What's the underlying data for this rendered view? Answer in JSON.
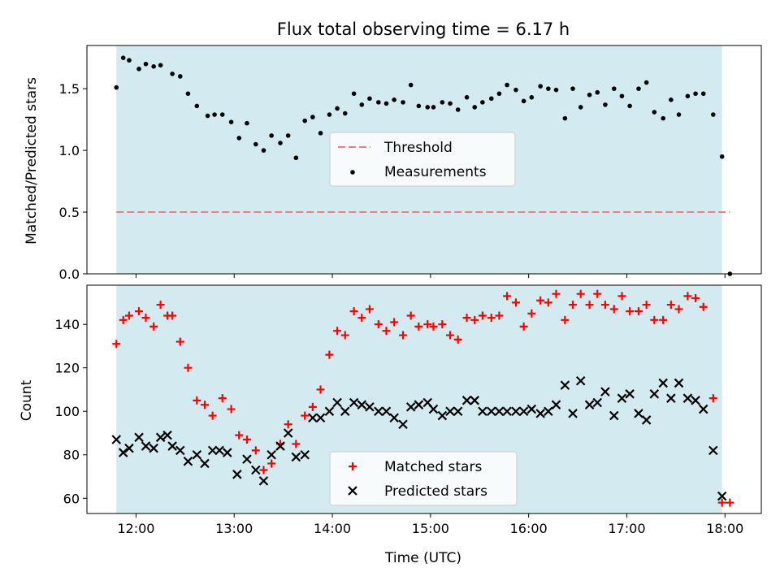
{
  "colors": {
    "shade": "#d4eaf1",
    "threshold": "#f08080",
    "measurement": "#000000",
    "matched": "#ff0000",
    "predicted": "#000000"
  },
  "chart_data": [
    {
      "type": "scatter",
      "title": "Flux total observing time = 6.17 h",
      "xlabel": "",
      "ylabel": "Matched/Predicted stars",
      "xlim": [
        11.5,
        18.37
      ],
      "ylim": [
        0.0,
        1.85
      ],
      "yticks": [
        0.0,
        0.5,
        1.0,
        1.5
      ],
      "ytick_labels": [
        "0.0",
        "0.5",
        "1.0",
        "1.5"
      ],
      "xtick_labels_shown": false,
      "grid": false,
      "legend_position": "center",
      "shaded_span": [
        11.8,
        17.97
      ],
      "threshold": {
        "name": "Threshold",
        "value": 0.5,
        "x_range": [
          11.8,
          18.05
        ]
      },
      "series": [
        {
          "name": "Measurements",
          "x": [
            11.8,
            11.87,
            11.93,
            12.03,
            12.1,
            12.18,
            12.25,
            12.37,
            12.45,
            12.53,
            12.62,
            12.73,
            12.8,
            12.88,
            12.97,
            13.05,
            13.13,
            13.22,
            13.3,
            13.38,
            13.47,
            13.55,
            13.63,
            13.72,
            13.8,
            13.88,
            13.97,
            14.05,
            14.13,
            14.22,
            14.3,
            14.38,
            14.47,
            14.55,
            14.63,
            14.72,
            14.8,
            14.88,
            14.97,
            15.03,
            15.12,
            15.2,
            15.28,
            15.37,
            15.45,
            15.53,
            15.62,
            15.7,
            15.78,
            15.87,
            15.95,
            16.03,
            16.12,
            16.2,
            16.28,
            16.37,
            16.45,
            16.53,
            16.62,
            16.7,
            16.78,
            16.87,
            16.95,
            17.03,
            17.12,
            17.2,
            17.28,
            17.37,
            17.45,
            17.53,
            17.62,
            17.7,
            17.78,
            17.88,
            17.97,
            18.05
          ],
          "y": [
            1.51,
            1.75,
            1.73,
            1.66,
            1.7,
            1.68,
            1.69,
            1.62,
            1.6,
            1.46,
            1.36,
            1.28,
            1.29,
            1.29,
            1.23,
            1.1,
            1.22,
            1.05,
            1.0,
            1.12,
            1.06,
            1.12,
            0.94,
            1.24,
            1.27,
            1.14,
            1.29,
            1.34,
            1.3,
            1.46,
            1.37,
            1.42,
            1.39,
            1.38,
            1.41,
            1.39,
            1.53,
            1.36,
            1.35,
            1.35,
            1.39,
            1.38,
            1.33,
            1.43,
            1.35,
            1.39,
            1.42,
            1.46,
            1.53,
            1.49,
            1.4,
            1.43,
            1.52,
            1.5,
            1.49,
            1.26,
            1.5,
            1.35,
            1.45,
            1.47,
            1.37,
            1.5,
            1.44,
            1.36,
            1.5,
            1.55,
            1.31,
            1.26,
            1.41,
            1.29,
            1.44,
            1.46,
            1.46,
            1.29,
            0.95,
            0.0
          ]
        }
      ]
    },
    {
      "type": "scatter",
      "title": "",
      "xlabel": "Time (UTC)",
      "ylabel": "Count",
      "xlim": [
        11.5,
        18.37
      ],
      "ylim": [
        53,
        158
      ],
      "xticks": [
        12,
        13,
        14,
        15,
        16,
        17,
        18
      ],
      "xtick_labels": [
        "12:00",
        "13:00",
        "14:00",
        "15:00",
        "16:00",
        "17:00",
        "18:00"
      ],
      "yticks": [
        60,
        80,
        100,
        120,
        140
      ],
      "ytick_labels": [
        "60",
        "80",
        "100",
        "120",
        "140"
      ],
      "grid": false,
      "legend_position": "lower center",
      "shaded_span": [
        11.8,
        17.97
      ],
      "series": [
        {
          "name": "Matched stars",
          "marker": "plus",
          "x": [
            11.8,
            11.87,
            11.93,
            12.03,
            12.1,
            12.18,
            12.25,
            12.32,
            12.37,
            12.45,
            12.53,
            12.62,
            12.7,
            12.78,
            12.88,
            12.97,
            13.05,
            13.13,
            13.22,
            13.3,
            13.38,
            13.47,
            13.55,
            13.63,
            13.72,
            13.8,
            13.88,
            13.97,
            14.05,
            14.13,
            14.22,
            14.3,
            14.38,
            14.47,
            14.55,
            14.63,
            14.72,
            14.8,
            14.88,
            14.97,
            15.03,
            15.12,
            15.2,
            15.28,
            15.37,
            15.45,
            15.53,
            15.62,
            15.7,
            15.78,
            15.87,
            15.95,
            16.03,
            16.12,
            16.2,
            16.28,
            16.37,
            16.45,
            16.53,
            16.62,
            16.7,
            16.78,
            16.87,
            16.95,
            17.03,
            17.12,
            17.2,
            17.28,
            17.37,
            17.45,
            17.53,
            17.62,
            17.7,
            17.78,
            17.88,
            17.97,
            18.05
          ],
          "y": [
            131,
            142,
            144,
            146,
            143,
            139,
            149,
            144,
            144,
            132,
            120,
            105,
            103,
            98,
            106,
            101,
            89,
            87,
            82,
            73,
            76,
            85,
            94,
            85,
            98,
            102,
            110,
            126,
            137,
            135,
            146,
            143,
            147,
            140,
            137,
            141,
            135,
            144,
            139,
            140,
            139,
            140,
            135,
            133,
            143,
            142,
            144,
            143,
            144,
            153,
            150,
            139,
            145,
            151,
            150,
            154,
            142,
            149,
            154,
            149,
            154,
            149,
            147,
            153,
            146,
            146,
            149,
            142,
            142,
            149,
            147,
            153,
            152,
            148,
            106,
            58,
            58
          ]
        },
        {
          "name": "Predicted stars",
          "marker": "x",
          "x": [
            11.8,
            11.87,
            11.93,
            12.03,
            12.1,
            12.18,
            12.25,
            12.32,
            12.37,
            12.45,
            12.53,
            12.62,
            12.7,
            12.78,
            12.85,
            12.93,
            13.03,
            13.13,
            13.22,
            13.3,
            13.38,
            13.47,
            13.55,
            13.63,
            13.72,
            13.8,
            13.88,
            13.97,
            14.05,
            14.13,
            14.22,
            14.3,
            14.38,
            14.47,
            14.55,
            14.63,
            14.72,
            14.8,
            14.88,
            14.97,
            15.03,
            15.12,
            15.2,
            15.28,
            15.37,
            15.45,
            15.53,
            15.62,
            15.7,
            15.78,
            15.87,
            15.95,
            16.03,
            16.12,
            16.2,
            16.28,
            16.37,
            16.45,
            16.53,
            16.62,
            16.7,
            16.78,
            16.87,
            16.95,
            17.03,
            17.12,
            17.2,
            17.28,
            17.37,
            17.45,
            17.53,
            17.62,
            17.7,
            17.78,
            17.88,
            17.97
          ],
          "y": [
            87,
            81,
            83,
            88,
            84,
            83,
            88,
            89,
            84,
            82,
            77,
            80,
            76,
            82,
            82,
            81,
            71,
            78,
            73,
            68,
            80,
            84,
            90,
            79,
            80,
            97,
            97,
            100,
            104,
            100,
            104,
            103,
            102,
            100,
            100,
            97,
            94,
            102,
            103,
            104,
            101,
            98,
            100,
            100,
            105,
            105,
            100,
            100,
            100,
            100,
            100,
            100,
            101,
            99,
            100,
            103,
            112,
            99,
            114,
            103,
            104,
            109,
            98,
            106,
            108,
            99,
            96,
            108,
            113,
            106,
            113,
            106,
            105,
            101,
            82,
            61
          ]
        }
      ]
    }
  ]
}
